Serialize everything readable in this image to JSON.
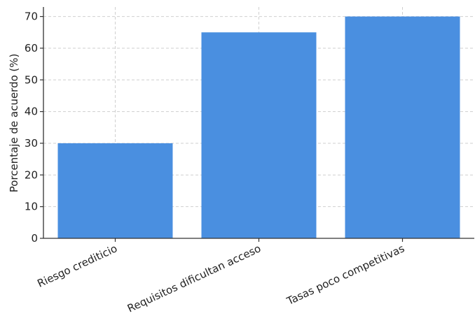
{
  "chart_data": {
    "type": "bar",
    "title": "",
    "xlabel": "",
    "ylabel": "Porcentaje de acuerdo (%)",
    "categories": [
      "Riesgo crediticio",
      "Requisitos dificultan acceso",
      "Tasas poco competitivas"
    ],
    "values": [
      30,
      65,
      70
    ],
    "ylim": [
      0,
      73
    ],
    "yticks": [
      0,
      10,
      20,
      30,
      40,
      50,
      60,
      70
    ],
    "grid": true,
    "legend": "none",
    "colors": {
      "bar": "#4a8fe0",
      "grid": "#cfcfcf",
      "axis": "#333333",
      "text": "#222222"
    }
  }
}
